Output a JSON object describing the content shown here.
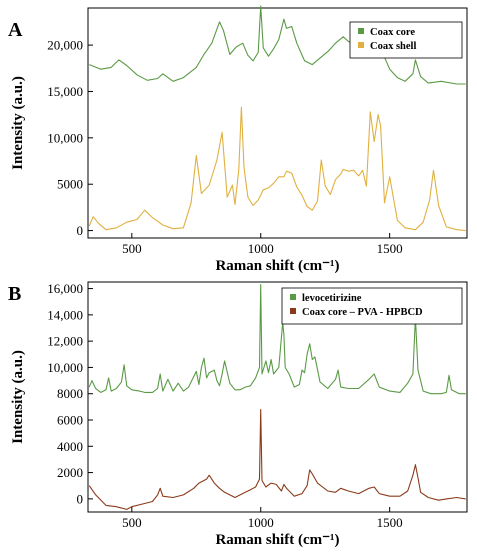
{
  "figure": {
    "description": "Raman spectra, two panels"
  },
  "colors": {
    "green": "#5a9a45",
    "gold": "#e0b040",
    "brown": "#8a3a1a",
    "axis": "#000000"
  },
  "chart_data": [
    {
      "panel_label": "A",
      "type": "line",
      "xlabel": "Raman shift (cm⁻¹)",
      "ylabel": "Intensity (a.u.)",
      "xlim": [
        330,
        1800
      ],
      "ylim": [
        -800,
        24000
      ],
      "xticks": [
        500,
        1000,
        1500
      ],
      "yticks": [
        0,
        5000,
        10000,
        15000,
        20000
      ],
      "ytick_labels": [
        "0",
        "5000",
        "10,000",
        "15,000",
        "20,000"
      ],
      "legend_position": "top-right",
      "grid": false,
      "series": [
        {
          "name": "Coax core",
          "color": "#5a9a45",
          "x": [
            335,
            380,
            420,
            450,
            480,
            520,
            560,
            600,
            620,
            660,
            700,
            750,
            780,
            810,
            840,
            855,
            880,
            905,
            930,
            950,
            970,
            990,
            1000,
            1010,
            1030,
            1050,
            1070,
            1090,
            1100,
            1120,
            1140,
            1170,
            1200,
            1230,
            1260,
            1290,
            1320,
            1340,
            1360,
            1380,
            1400,
            1420,
            1440,
            1460,
            1480,
            1500,
            1530,
            1560,
            1590,
            1600,
            1620,
            1650,
            1700,
            1760,
            1795
          ],
          "y": [
            17900,
            17400,
            17600,
            18400,
            17800,
            16800,
            16200,
            16400,
            16900,
            16100,
            16500,
            17600,
            19000,
            20200,
            22500,
            21600,
            19000,
            19800,
            20200,
            18900,
            18300,
            19200,
            24200,
            19700,
            18800,
            19600,
            20600,
            22800,
            21800,
            22000,
            20200,
            18300,
            17900,
            18600,
            19300,
            20200,
            20900,
            20400,
            20100,
            20600,
            21400,
            20900,
            19800,
            19400,
            18700,
            17400,
            16500,
            16100,
            16900,
            18400,
            16600,
            15900,
            16100,
            15800,
            15800
          ]
        },
        {
          "name": "Coax shell",
          "color": "#e0b040",
          "x": [
            335,
            350,
            370,
            400,
            440,
            480,
            520,
            550,
            580,
            620,
            660,
            700,
            730,
            750,
            770,
            800,
            830,
            850,
            870,
            890,
            900,
            915,
            925,
            935,
            950,
            970,
            990,
            1010,
            1030,
            1050,
            1070,
            1090,
            1100,
            1120,
            1140,
            1160,
            1180,
            1200,
            1220,
            1235,
            1250,
            1270,
            1290,
            1310,
            1320,
            1340,
            1360,
            1380,
            1395,
            1410,
            1425,
            1440,
            1455,
            1465,
            1480,
            1500,
            1530,
            1560,
            1600,
            1630,
            1655,
            1670,
            1690,
            1720,
            1760,
            1795
          ],
          "y": [
            500,
            1500,
            800,
            100,
            300,
            900,
            1200,
            2200,
            1400,
            600,
            200,
            300,
            3000,
            8100,
            4000,
            4900,
            7600,
            10600,
            3600,
            4900,
            2800,
            6600,
            13300,
            6800,
            3600,
            2700,
            3300,
            4400,
            4600,
            5100,
            5800,
            5800,
            6400,
            6200,
            4700,
            3800,
            2600,
            2200,
            3200,
            7600,
            4800,
            3900,
            5500,
            6100,
            6600,
            6400,
            6500,
            5900,
            6500,
            4800,
            12800,
            9600,
            12500,
            11300,
            3000,
            5800,
            1100,
            300,
            100,
            900,
            3300,
            6500,
            2700,
            400,
            100,
            0
          ]
        }
      ]
    },
    {
      "panel_label": "B",
      "type": "line",
      "xlabel": "Raman shift (cm⁻¹)",
      "ylabel": "Intensity (a.u.)",
      "xlim": [
        330,
        1800
      ],
      "ylim": [
        -1000,
        16500
      ],
      "xticks": [
        500,
        1000,
        1500
      ],
      "yticks": [
        0,
        2000,
        4000,
        6000,
        8000,
        10000,
        12000,
        14000,
        16000
      ],
      "ytick_labels": [
        "0",
        "2000",
        "4000",
        "6000",
        "8000",
        "10,000",
        "12,000",
        "14,000",
        "16,000"
      ],
      "legend_position": "top-right",
      "grid": false,
      "series": [
        {
          "name": "levocetirizine",
          "color": "#5a9a45",
          "x": [
            335,
            345,
            360,
            380,
            400,
            410,
            420,
            440,
            460,
            470,
            480,
            500,
            530,
            550,
            580,
            600,
            610,
            620,
            640,
            660,
            680,
            700,
            720,
            740,
            750,
            760,
            770,
            780,
            790,
            800,
            820,
            830,
            840,
            850,
            860,
            880,
            900,
            920,
            940,
            960,
            980,
            995,
            1000,
            1005,
            1020,
            1030,
            1040,
            1050,
            1070,
            1085,
            1090,
            1095,
            1110,
            1130,
            1150,
            1160,
            1170,
            1180,
            1190,
            1200,
            1210,
            1230,
            1260,
            1290,
            1300,
            1310,
            1340,
            1380,
            1420,
            1440,
            1460,
            1500,
            1540,
            1570,
            1590,
            1600,
            1610,
            1630,
            1660,
            1700,
            1720,
            1730,
            1740,
            1770,
            1795
          ],
          "y": [
            8500,
            9000,
            8400,
            8100,
            8300,
            9200,
            8200,
            8400,
            8900,
            10200,
            8600,
            8300,
            8200,
            8100,
            8100,
            8400,
            9500,
            8200,
            9100,
            8200,
            8800,
            8200,
            8500,
            9300,
            9700,
            8700,
            10000,
            10700,
            9200,
            9600,
            9800,
            9000,
            8600,
            9500,
            10500,
            8800,
            8300,
            8300,
            8500,
            8600,
            9200,
            10000,
            16300,
            9500,
            10500,
            9600,
            10600,
            9500,
            10000,
            13400,
            12500,
            10000,
            9500,
            8500,
            8700,
            9800,
            9600,
            11000,
            11800,
            10600,
            10800,
            8900,
            8400,
            9100,
            9800,
            8500,
            8400,
            8400,
            9100,
            9500,
            8500,
            8200,
            8100,
            8800,
            9500,
            13800,
            9800,
            8200,
            8000,
            8000,
            8100,
            9400,
            8300,
            8000,
            8000
          ]
        },
        {
          "name": "Coax core – PVA - HPBCD",
          "color": "#8a3a1a",
          "x": [
            335,
            360,
            400,
            440,
            480,
            500,
            540,
            580,
            600,
            610,
            620,
            660,
            700,
            740,
            760,
            790,
            800,
            820,
            840,
            860,
            880,
            900,
            920,
            940,
            960,
            980,
            995,
            1000,
            1005,
            1020,
            1040,
            1060,
            1080,
            1090,
            1100,
            1130,
            1160,
            1180,
            1190,
            1200,
            1220,
            1260,
            1290,
            1310,
            1340,
            1380,
            1420,
            1440,
            1460,
            1500,
            1540,
            1570,
            1590,
            1600,
            1610,
            1620,
            1650,
            1690,
            1720,
            1760,
            1795
          ],
          "y": [
            1000,
            300,
            -500,
            -600,
            -800,
            -600,
            -400,
            -200,
            300,
            800,
            200,
            100,
            300,
            800,
            1200,
            1500,
            1800,
            1200,
            800,
            500,
            300,
            100,
            300,
            500,
            700,
            900,
            1500,
            6800,
            1400,
            900,
            1200,
            1100,
            600,
            1100,
            800,
            200,
            400,
            1000,
            2200,
            1900,
            1200,
            600,
            500,
            800,
            600,
            400,
            800,
            900,
            400,
            200,
            200,
            600,
            1800,
            2600,
            1600,
            500,
            100,
            -100,
            0,
            100,
            0
          ]
        }
      ]
    }
  ]
}
